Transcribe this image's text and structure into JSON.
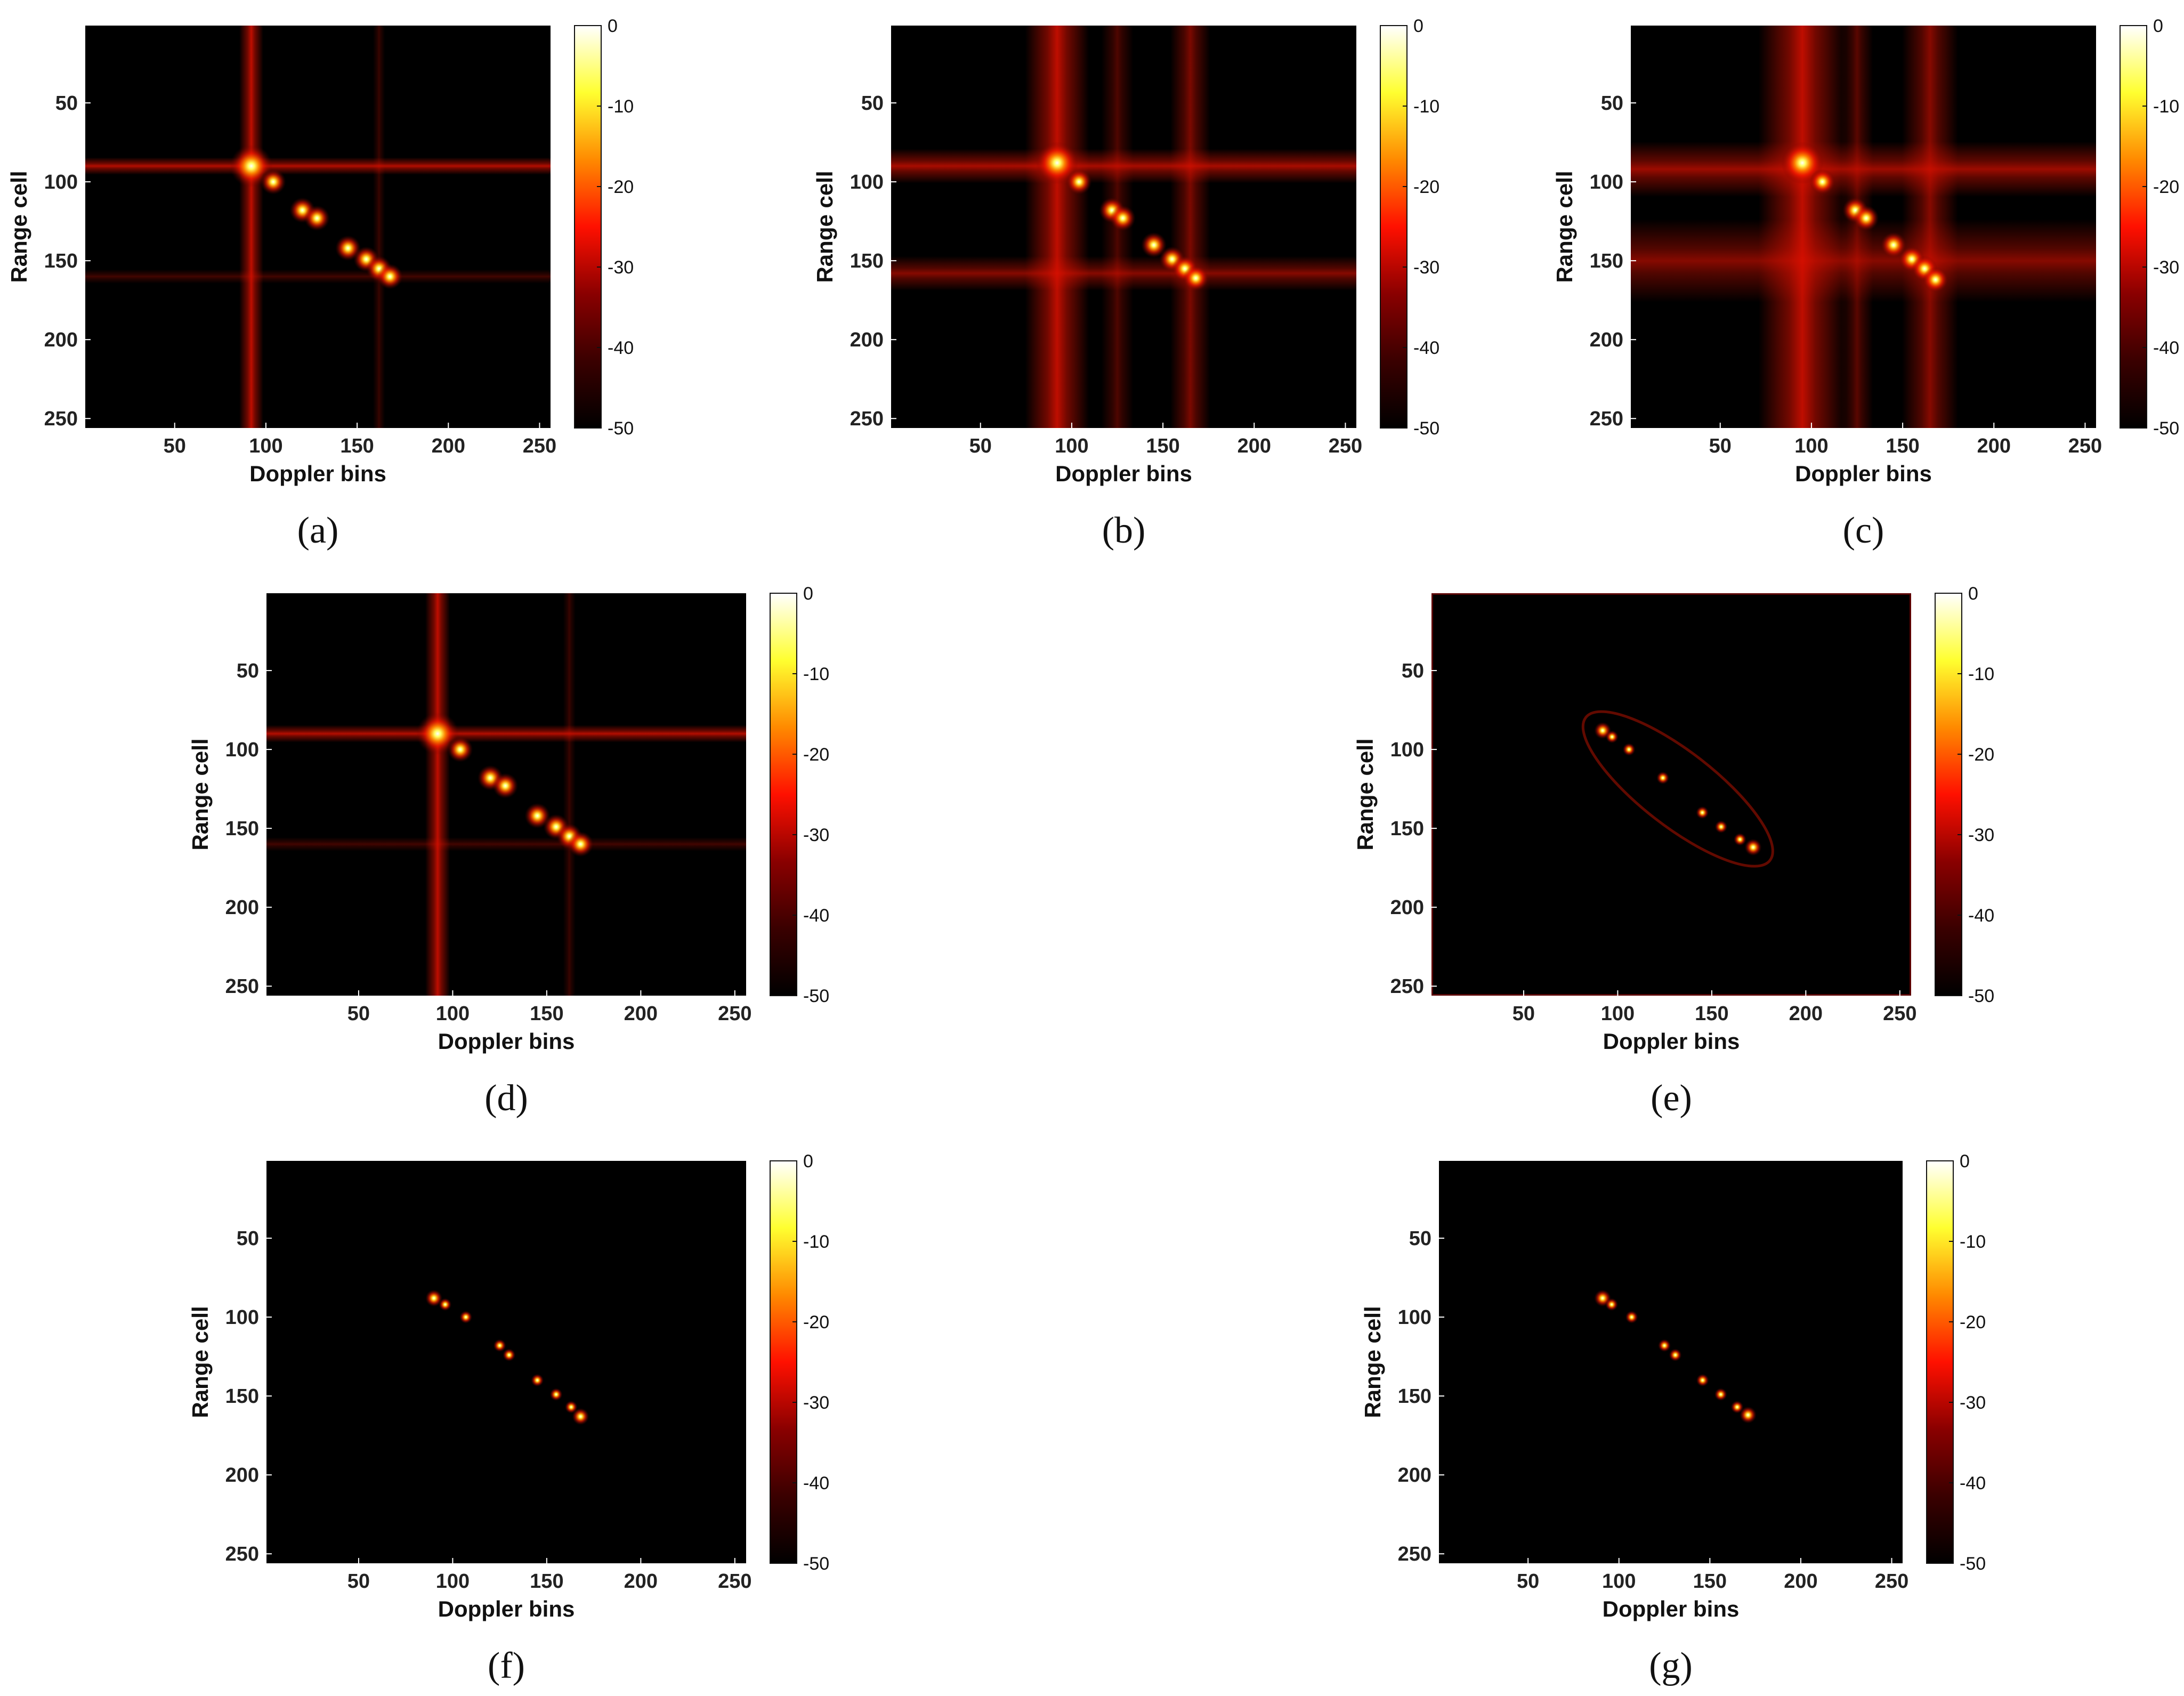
{
  "figure": {
    "colormap": [
      "#000000",
      "#3a0000",
      "#8a0000",
      "#ff1000",
      "#ff8a00",
      "#ffff30",
      "#ffffff"
    ],
    "background": "#ffffff"
  },
  "chart_data": [
    {
      "panel": "(a)",
      "type": "heatmap",
      "xlabel": "Doppler bins",
      "ylabel": "Range cell",
      "xlim": [
        1,
        256
      ],
      "ylim": [
        1,
        256
      ],
      "xticks": [
        50,
        100,
        150,
        200,
        250
      ],
      "yticks": [
        50,
        100,
        150,
        200,
        250
      ],
      "colorbar": {
        "ticks": [
          0,
          -10,
          -20,
          -30,
          -40,
          -50
        ],
        "range": [
          -50,
          0
        ]
      },
      "scatterers": [
        [
          92,
          90
        ],
        [
          104,
          100
        ],
        [
          120,
          118
        ],
        [
          128,
          123
        ],
        [
          145,
          142
        ],
        [
          155,
          149
        ],
        [
          162,
          155
        ],
        [
          168,
          160
        ]
      ],
      "vertical_sidelobes": [
        {
          "x": 92,
          "v": 0.85,
          "w": 6
        },
        {
          "x": 162,
          "v": 0.25,
          "w": 3
        }
      ],
      "horizontal_sidelobes": [
        {
          "y": 90,
          "v": 0.8,
          "w": 5
        },
        {
          "y": 160,
          "v": 0.3,
          "w": 4
        }
      ],
      "ring": false
    },
    {
      "panel": "(b)",
      "type": "heatmap",
      "xlabel": "Doppler bins",
      "ylabel": "Range cell",
      "xlim": [
        1,
        256
      ],
      "ylim": [
        1,
        256
      ],
      "xticks": [
        50,
        100,
        150,
        200,
        250
      ],
      "yticks": [
        50,
        100,
        150,
        200,
        250
      ],
      "colorbar": {
        "ticks": [
          0,
          -10,
          -20,
          -30,
          -40,
          -50
        ],
        "range": [
          -50,
          0
        ]
      },
      "scatterers": [
        [
          92,
          88
        ],
        [
          104,
          100
        ],
        [
          122,
          118
        ],
        [
          128,
          123
        ],
        [
          145,
          140
        ],
        [
          155,
          149
        ],
        [
          162,
          155
        ],
        [
          168,
          161
        ]
      ],
      "vertical_sidelobes": [
        {
          "x": 92,
          "v": 0.85,
          "w": 16
        },
        {
          "x": 125,
          "v": 0.35,
          "w": 8
        },
        {
          "x": 165,
          "v": 0.55,
          "w": 10
        }
      ],
      "horizontal_sidelobes": [
        {
          "y": 90,
          "v": 0.75,
          "w": 10
        },
        {
          "y": 158,
          "v": 0.6,
          "w": 10
        }
      ],
      "ring": false
    },
    {
      "panel": "(c)",
      "type": "heatmap",
      "xlabel": "Doppler bins",
      "ylabel": "Range cell",
      "xlim": [
        1,
        256
      ],
      "ylim": [
        1,
        256
      ],
      "xticks": [
        50,
        100,
        150,
        200,
        250
      ],
      "yticks": [
        50,
        100,
        150,
        200,
        250
      ],
      "colorbar": {
        "ticks": [
          0,
          -10,
          -20,
          -30,
          -40,
          -50
        ],
        "range": [
          -50,
          0
        ]
      },
      "scatterers": [
        [
          95,
          88
        ],
        [
          106,
          100
        ],
        [
          124,
          118
        ],
        [
          130,
          123
        ],
        [
          145,
          140
        ],
        [
          155,
          149
        ],
        [
          162,
          155
        ],
        [
          168,
          162
        ]
      ],
      "vertical_sidelobes": [
        {
          "x": 95,
          "v": 0.85,
          "w": 22
        },
        {
          "x": 125,
          "v": 0.4,
          "w": 8
        },
        {
          "x": 165,
          "v": 0.6,
          "w": 14
        }
      ],
      "horizontal_sidelobes": [
        {
          "y": 92,
          "v": 0.7,
          "w": 16
        },
        {
          "y": 150,
          "v": 0.6,
          "w": 24
        }
      ],
      "ring": false
    },
    {
      "panel": "(d)",
      "type": "heatmap",
      "xlabel": "Doppler bins",
      "ylabel": "Range cell",
      "xlim": [
        1,
        256
      ],
      "ylim": [
        1,
        256
      ],
      "xticks": [
        50,
        100,
        150,
        200,
        250
      ],
      "yticks": [
        50,
        100,
        150,
        200,
        250
      ],
      "colorbar": {
        "ticks": [
          0,
          -10,
          -20,
          -30,
          -40,
          -50
        ],
        "range": [
          -50,
          0
        ]
      },
      "scatterers": [
        [
          92,
          90
        ],
        [
          104,
          100
        ],
        [
          120,
          118
        ],
        [
          128,
          123
        ],
        [
          145,
          142
        ],
        [
          155,
          149
        ],
        [
          162,
          155
        ],
        [
          168,
          160
        ]
      ],
      "vertical_sidelobes": [
        {
          "x": 92,
          "v": 0.85,
          "w": 6
        },
        {
          "x": 162,
          "v": 0.25,
          "w": 3
        }
      ],
      "horizontal_sidelobes": [
        {
          "y": 90,
          "v": 0.8,
          "w": 5
        },
        {
          "y": 160,
          "v": 0.3,
          "w": 4
        }
      ],
      "ring": false
    },
    {
      "panel": "(e)",
      "type": "heatmap",
      "xlabel": "Doppler bins",
      "ylabel": "Range cell",
      "xlim": [
        1,
        256
      ],
      "ylim": [
        1,
        256
      ],
      "xticks": [
        50,
        100,
        150,
        200,
        250
      ],
      "yticks": [
        50,
        100,
        150,
        200,
        250
      ],
      "colorbar": {
        "ticks": [
          0,
          -10,
          -20,
          -30,
          -40,
          -50
        ],
        "range": [
          -50,
          0
        ]
      },
      "scatterers": [
        [
          92,
          88
        ],
        [
          97,
          92
        ],
        [
          106,
          100
        ],
        [
          124,
          118
        ],
        [
          145,
          140
        ],
        [
          155,
          149
        ],
        [
          165,
          157
        ],
        [
          172,
          162
        ]
      ],
      "vertical_sidelobes": [],
      "horizontal_sidelobes": [],
      "ring": true
    },
    {
      "panel": "(f)",
      "type": "heatmap",
      "xlabel": "Doppler bins",
      "ylabel": "Range cell",
      "xlim": [
        1,
        256
      ],
      "ylim": [
        1,
        256
      ],
      "xticks": [
        50,
        100,
        150,
        200,
        250
      ],
      "yticks": [
        50,
        100,
        150,
        200,
        250
      ],
      "colorbar": {
        "ticks": [
          0,
          -10,
          -20,
          -30,
          -40,
          -50
        ],
        "range": [
          -50,
          0
        ]
      },
      "scatterers": [
        [
          90,
          88
        ],
        [
          96,
          92
        ],
        [
          107,
          100
        ],
        [
          125,
          118
        ],
        [
          130,
          124
        ],
        [
          145,
          140
        ],
        [
          155,
          149
        ],
        [
          163,
          157
        ],
        [
          168,
          163
        ]
      ],
      "vertical_sidelobes": [],
      "horizontal_sidelobes": [],
      "ring": false
    },
    {
      "panel": "(g)",
      "type": "heatmap",
      "xlabel": "Doppler bins",
      "ylabel": "Range cell",
      "xlim": [
        1,
        256
      ],
      "ylim": [
        1,
        256
      ],
      "xticks": [
        50,
        100,
        150,
        200,
        250
      ],
      "yticks": [
        50,
        100,
        150,
        200,
        250
      ],
      "colorbar": {
        "ticks": [
          0,
          -10,
          -20,
          -30,
          -40,
          -50
        ],
        "range": [
          -50,
          0
        ]
      },
      "scatterers": [
        [
          91,
          88
        ],
        [
          96,
          92
        ],
        [
          107,
          100
        ],
        [
          125,
          118
        ],
        [
          131,
          124
        ],
        [
          146,
          140
        ],
        [
          156,
          149
        ],
        [
          165,
          157
        ],
        [
          171,
          162
        ]
      ],
      "vertical_sidelobes": [],
      "horizontal_sidelobes": [],
      "ring": false
    }
  ]
}
